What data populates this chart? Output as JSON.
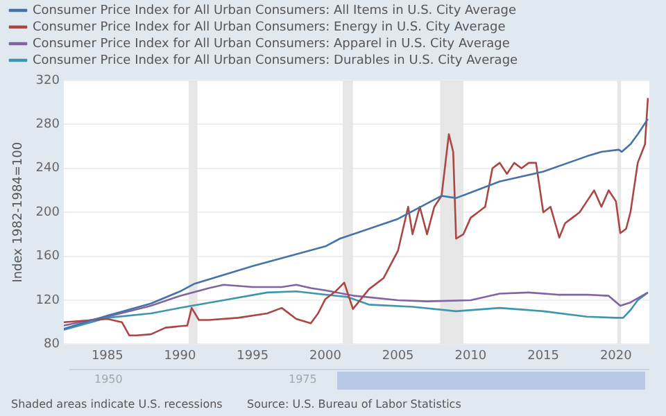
{
  "chart_data": {
    "type": "line",
    "ylabel": "Index 1982-1984=100",
    "xlim": [
      1982,
      2022.3
    ],
    "xticks": [
      1985,
      1990,
      1995,
      2000,
      2005,
      2010,
      2015,
      2020
    ],
    "ylim": [
      80,
      320
    ],
    "yticks": [
      80,
      120,
      160,
      200,
      240,
      280,
      320
    ],
    "grid": "y",
    "legend": "top",
    "marker": "none",
    "line_style": "solid",
    "annotations": [
      "Shaded areas indicate U.S. recessions",
      "Source: U.S. Bureau of Labor Statistics",
      "1950",
      "1975"
    ],
    "bands": [
      {
        "axis": "x",
        "from": 1990.6,
        "to": 1991.2,
        "color": "#e6e6e6"
      },
      {
        "axis": "x",
        "from": 2001.2,
        "to": 2001.9,
        "color": "#e6e6e6"
      },
      {
        "axis": "x",
        "from": 2007.9,
        "to": 2009.5,
        "color": "#e6e6e6"
      },
      {
        "axis": "x",
        "from": 2020.1,
        "to": 2020.35,
        "color": "#e6e6e6"
      }
    ],
    "series": [
      {
        "name": "Consumer Price Index for All Urban Consumers: All Items in U.S. City Average",
        "color": "#4572a7",
        "x": [
          1982,
          1983,
          1985,
          1988,
          1990,
          1991,
          1995,
          2000,
          2001,
          2005,
          2008,
          2009,
          2010,
          2012,
          2015,
          2018,
          2019,
          2020.2,
          2020.4,
          2021,
          2021.5,
          2022.2
        ],
        "values": [
          94,
          98,
          106,
          117,
          128,
          135,
          151,
          169,
          176,
          194,
          215,
          213,
          218,
          228,
          237,
          251,
          255,
          257,
          255,
          262,
          271,
          285
        ]
      },
      {
        "name": "Consumer Price Index for All Urban Consumers: Energy in U.S. City Average",
        "color": "#aa4643",
        "x": [
          1982,
          1985,
          1986,
          1986.5,
          1987,
          1988,
          1989,
          1990.5,
          1990.8,
          1991.3,
          1992,
          1994,
          1996,
          1997,
          1998,
          1999,
          1999.5,
          2000,
          2000.7,
          2001.3,
          2001.9,
          2003,
          2004,
          2005,
          2005.7,
          2006,
          2006.5,
          2007,
          2007.5,
          2008,
          2008.5,
          2008.8,
          2009,
          2009.5,
          2010,
          2010.5,
          2011,
          2011.5,
          2012,
          2012.5,
          2013,
          2013.5,
          2014,
          2014.5,
          2015,
          2015.5,
          2016.1,
          2016.5,
          2017,
          2017.5,
          2018,
          2018.5,
          2019,
          2019.5,
          2020,
          2020.3,
          2020.7,
          2021,
          2021.5,
          2022,
          2022.2
        ],
        "values": [
          100,
          103,
          100,
          88,
          88,
          89,
          95,
          97,
          113,
          102,
          102,
          104,
          108,
          113,
          103,
          99,
          108,
          121,
          128,
          136,
          112,
          130,
          140,
          165,
          205,
          180,
          205,
          180,
          205,
          215,
          271,
          255,
          176,
          180,
          195,
          200,
          205,
          240,
          245,
          235,
          245,
          240,
          245,
          245,
          200,
          205,
          177,
          190,
          195,
          200,
          210,
          220,
          205,
          220,
          210,
          181,
          185,
          200,
          245,
          262,
          304
        ]
      },
      {
        "name": "Consumer Price Index for All Urban Consumers: Apparel in U.S. City Average",
        "color": "#8064a2",
        "x": [
          1982,
          1985,
          1988,
          1990,
          1992,
          1993,
          1995,
          1997,
          1998,
          1999,
          2000,
          2002,
          2005,
          2007,
          2010,
          2012,
          2014,
          2016,
          2018,
          2019.5,
          2020.3,
          2021,
          2022.2
        ],
        "values": [
          97,
          105,
          115,
          124,
          131,
          134,
          132,
          132,
          134,
          131,
          129,
          124,
          120,
          119,
          120,
          126,
          127,
          125,
          125,
          124,
          115,
          118,
          127
        ]
      },
      {
        "name": "Consumer Price Index for All Urban Consumers: Durables in U.S. City Average",
        "color": "#3d96ae",
        "x": [
          1982,
          1985,
          1988,
          1990,
          1993,
          1996,
          1998,
          2000,
          2001.5,
          2003,
          2006,
          2009,
          2012,
          2015,
          2018,
          2020,
          2020.5,
          2021,
          2021.5,
          2022.2
        ],
        "values": [
          93,
          104,
          108,
          113,
          120,
          127,
          128,
          125,
          123,
          116,
          114,
          110,
          113,
          110,
          105,
          104,
          104,
          111,
          120,
          127
        ]
      }
    ]
  }
}
